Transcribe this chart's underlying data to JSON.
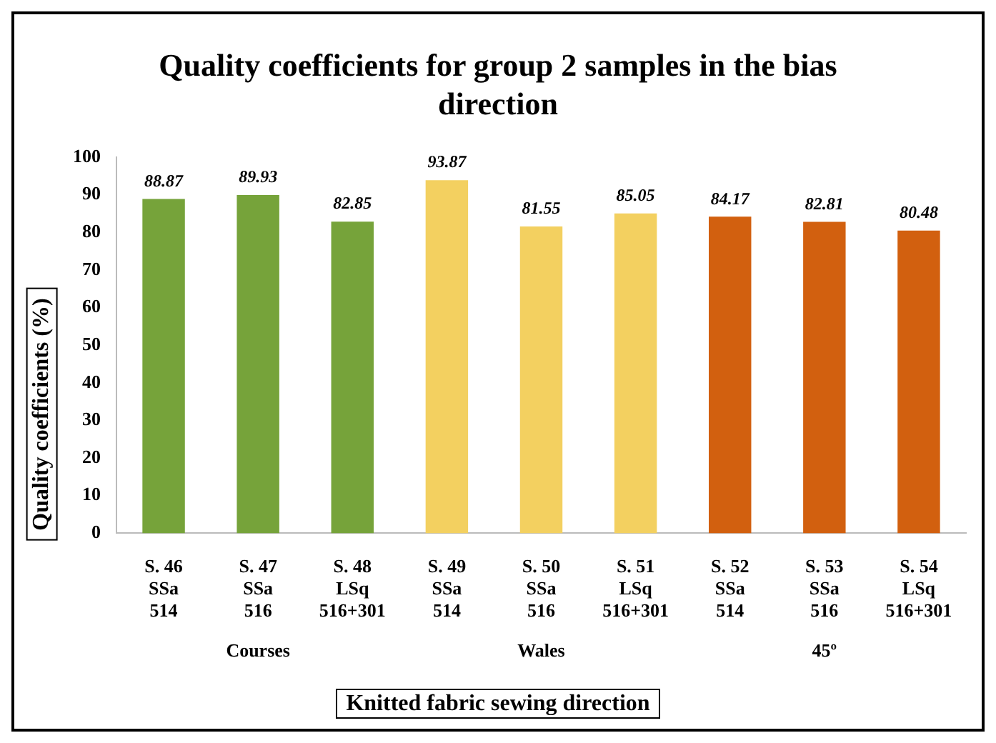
{
  "chart_data": {
    "type": "bar",
    "title": "Quality coefficients for group 2 samples in the bias direction",
    "xlabel": "Knitted fabric sewing direction",
    "ylabel": "Quality coefficients (%)",
    "categories": [
      "S. 46\nSSa\n514",
      "S. 47\nSSa\n516",
      "S. 48\nLSq\n516+301",
      "S. 49\nSSa\n514",
      "S. 50\nSSa\n516",
      "S. 51\nLSq\n516+301",
      "S. 52\nSSa\n514",
      "S. 53\nSSa\n516",
      "S. 54\nLSq\n516+301"
    ],
    "values": [
      88.87,
      89.93,
      82.85,
      93.87,
      81.55,
      85.05,
      84.17,
      82.81,
      80.48
    ],
    "colors": [
      "#76a33a",
      "#76a33a",
      "#76a33a",
      "#f3d060",
      "#f3d060",
      "#f3d060",
      "#d2600f",
      "#d2600f",
      "#d2600f"
    ],
    "annotations": [
      "Courses",
      "Wales",
      "45º"
    ],
    "ylim": [
      0,
      100
    ],
    "yticks": [
      0,
      10,
      20,
      30,
      40,
      50,
      60,
      70,
      80,
      90,
      100
    ],
    "data_labels": true
  }
}
